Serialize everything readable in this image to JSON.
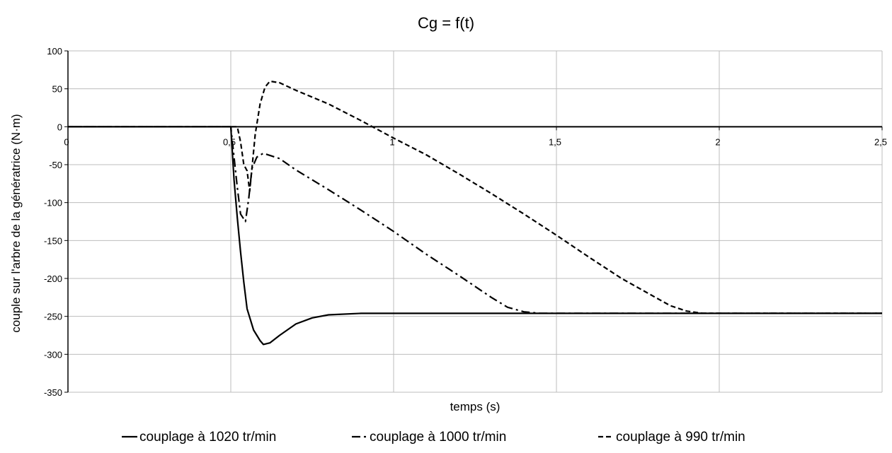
{
  "chart_data": {
    "type": "line",
    "title": "Cg = f(t)",
    "xlabel": "temps (s)",
    "ylabel": "couple sur l'arbre de la génératrice (N·m)",
    "xlim": [
      0,
      2.5
    ],
    "ylim": [
      -350,
      100
    ],
    "x_ticks": [
      0,
      0.5,
      1,
      1.5,
      2,
      2.5
    ],
    "x_tick_labels": [
      "0",
      "0,5",
      "1",
      "1,5",
      "2",
      "2,5"
    ],
    "y_ticks": [
      100,
      50,
      0,
      -50,
      -100,
      -150,
      -200,
      -250,
      -300,
      -350
    ],
    "y_tick_labels": [
      "100",
      "50",
      "0",
      "-50",
      "-100",
      "-150",
      "-200",
      "-250",
      "-300",
      "-350"
    ],
    "grid": true,
    "legend_position": "bottom",
    "series": [
      {
        "name": "couplage à 1020 tr/min",
        "style": "solid",
        "color": "#000000",
        "points": [
          [
            0,
            0
          ],
          [
            0.5,
            0
          ],
          [
            0.51,
            -70
          ],
          [
            0.52,
            -120
          ],
          [
            0.53,
            -165
          ],
          [
            0.54,
            -205
          ],
          [
            0.55,
            -240
          ],
          [
            0.57,
            -268
          ],
          [
            0.59,
            -282
          ],
          [
            0.6,
            -287
          ],
          [
            0.62,
            -285
          ],
          [
            0.65,
            -275
          ],
          [
            0.7,
            -260
          ],
          [
            0.75,
            -252
          ],
          [
            0.8,
            -248
          ],
          [
            0.9,
            -246
          ],
          [
            1.0,
            -246
          ],
          [
            1.5,
            -246
          ],
          [
            2.0,
            -246
          ],
          [
            2.5,
            -246
          ]
        ]
      },
      {
        "name": "couplage à 1000 tr/min",
        "style": "dashdot",
        "color": "#000000",
        "points": [
          [
            0,
            0
          ],
          [
            0.5,
            0
          ],
          [
            0.51,
            -40
          ],
          [
            0.52,
            -80
          ],
          [
            0.53,
            -115
          ],
          [
            0.545,
            -125
          ],
          [
            0.555,
            -95
          ],
          [
            0.565,
            -55
          ],
          [
            0.58,
            -40
          ],
          [
            0.6,
            -35
          ],
          [
            0.65,
            -42
          ],
          [
            0.7,
            -57
          ],
          [
            0.8,
            -83
          ],
          [
            0.9,
            -110
          ],
          [
            1.0,
            -138
          ],
          [
            1.1,
            -168
          ],
          [
            1.2,
            -196
          ],
          [
            1.3,
            -225
          ],
          [
            1.35,
            -238
          ],
          [
            1.4,
            -244
          ],
          [
            1.45,
            -246
          ],
          [
            1.5,
            -246
          ],
          [
            2.0,
            -246
          ],
          [
            2.5,
            -246
          ]
        ]
      },
      {
        "name": "couplage à 990 tr/min",
        "style": "dashed",
        "color": "#000000",
        "points": [
          [
            0,
            0
          ],
          [
            0.52,
            0
          ],
          [
            0.53,
            -20
          ],
          [
            0.54,
            -50
          ],
          [
            0.55,
            -58
          ],
          [
            0.558,
            -85
          ],
          [
            0.565,
            -55
          ],
          [
            0.575,
            -10
          ],
          [
            0.59,
            30
          ],
          [
            0.605,
            52
          ],
          [
            0.62,
            60
          ],
          [
            0.65,
            58
          ],
          [
            0.7,
            48
          ],
          [
            0.8,
            30
          ],
          [
            0.9,
            8
          ],
          [
            1.0,
            -15
          ],
          [
            1.1,
            -37
          ],
          [
            1.2,
            -62
          ],
          [
            1.3,
            -88
          ],
          [
            1.4,
            -115
          ],
          [
            1.5,
            -143
          ],
          [
            1.6,
            -172
          ],
          [
            1.7,
            -200
          ],
          [
            1.8,
            -224
          ],
          [
            1.85,
            -236
          ],
          [
            1.9,
            -243
          ],
          [
            1.95,
            -246
          ],
          [
            2.0,
            -246
          ],
          [
            2.5,
            -246
          ]
        ]
      }
    ]
  }
}
